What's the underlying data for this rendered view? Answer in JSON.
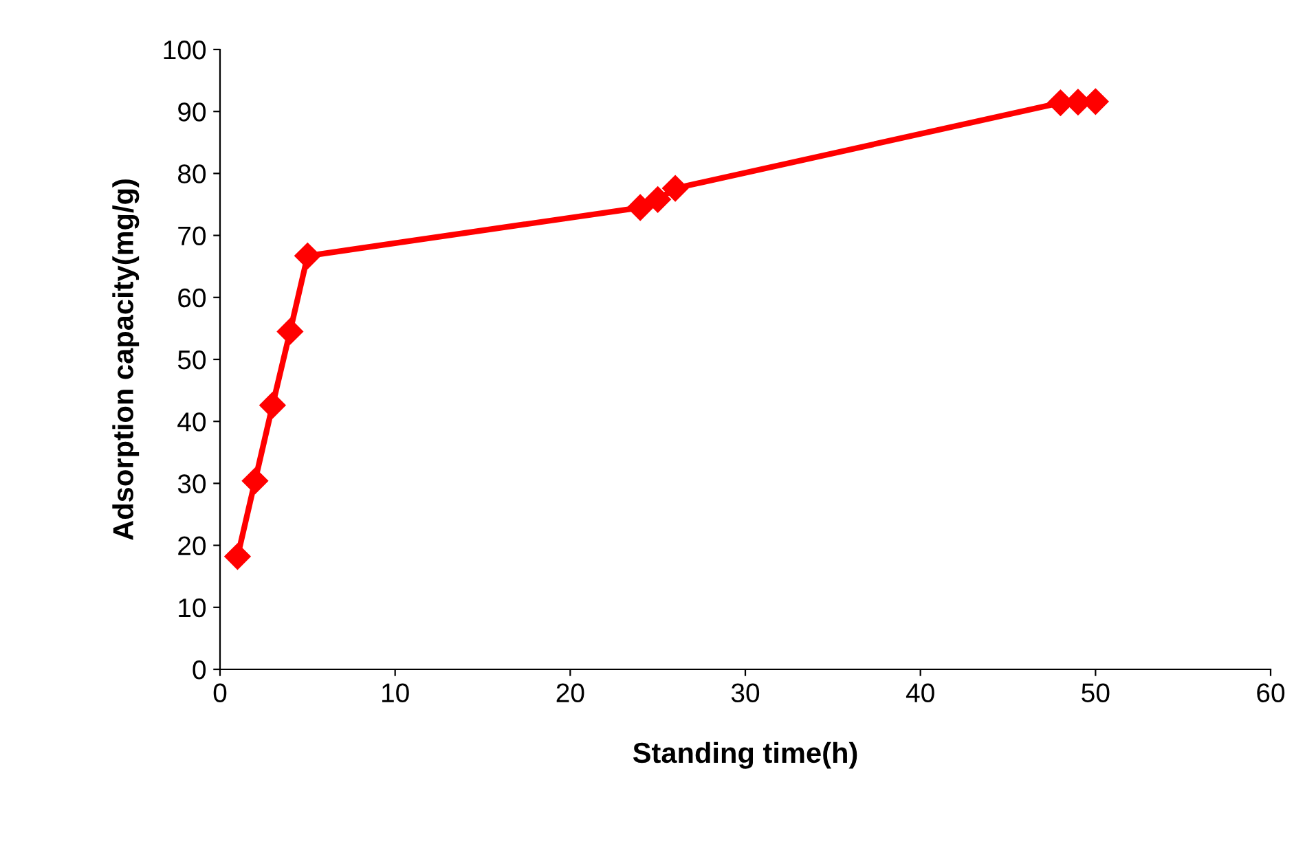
{
  "chart_data": {
    "type": "line",
    "xlabel": "Standing time(h)",
    "ylabel": "Adsorption capacity(mg/g)",
    "x": [
      1,
      2,
      3,
      4,
      5,
      24,
      25,
      26,
      48,
      49,
      50
    ],
    "series": [
      {
        "color": "#ff0000",
        "values": [
          18.2,
          30.4,
          42.6,
          54.5,
          66.7,
          74.5,
          75.8,
          77.6,
          91.4,
          91.5,
          91.6
        ]
      }
    ],
    "xlim": [
      0,
      60
    ],
    "xticks": [
      0,
      10,
      20,
      30,
      40,
      50,
      60
    ],
    "ylim": [
      0,
      100
    ],
    "yticks": [
      0,
      10,
      20,
      30,
      40,
      50,
      60,
      70,
      80,
      90,
      100
    ],
    "grid": false,
    "legend": false,
    "marker": "diamond",
    "line_style": "solid"
  }
}
